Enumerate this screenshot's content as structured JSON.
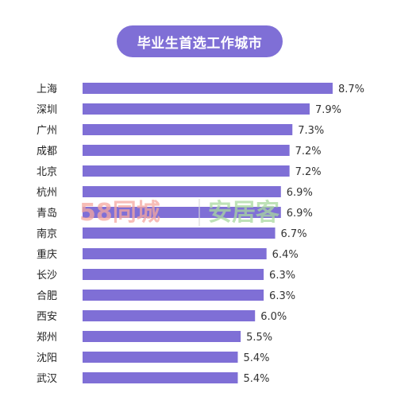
{
  "chart_data": {
    "type": "bar",
    "orientation": "horizontal",
    "title": "毕业生首选工作城市",
    "categories": [
      "上海",
      "深圳",
      "广州",
      "成都",
      "北京",
      "杭州",
      "青岛",
      "南京",
      "重庆",
      "长沙",
      "合肥",
      "西安",
      "郑州",
      "沈阳",
      "武汉"
    ],
    "values": [
      8.7,
      7.9,
      7.3,
      7.2,
      7.2,
      6.9,
      6.9,
      6.7,
      6.4,
      6.3,
      6.3,
      6.0,
      5.5,
      5.4,
      5.4
    ],
    "value_labels": [
      "8.7%",
      "7.9%",
      "7.3%",
      "7.2%",
      "7.2%",
      "6.9%",
      "6.9%",
      "6.7%",
      "6.4%",
      "6.3%",
      "6.3%",
      "6.0%",
      "5.5%",
      "5.4%",
      "5.4%"
    ],
    "unit": "%",
    "bar_color": "#7f6fd6",
    "grid": false,
    "legend": "none"
  },
  "watermark": {
    "left_brand": "58同城",
    "right_brand": "安居客",
    "left_color": "#f5a8a0",
    "right_color": "#a9d9a0"
  }
}
